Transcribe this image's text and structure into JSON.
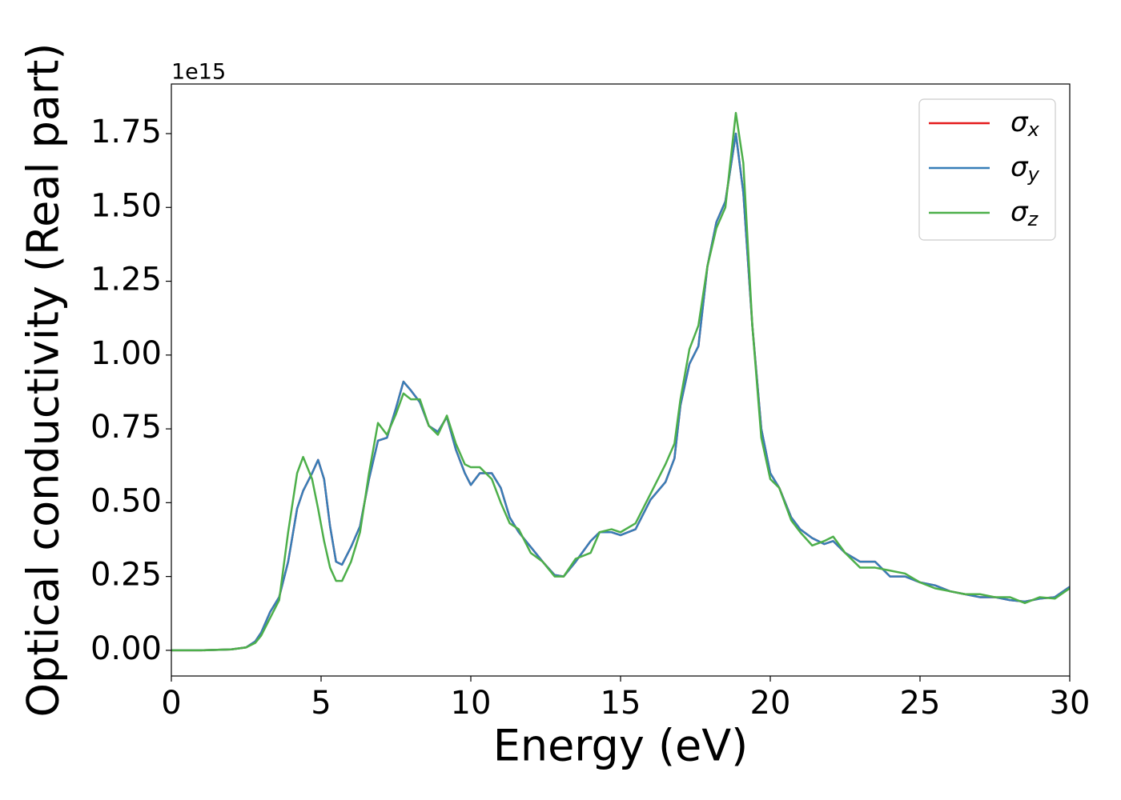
{
  "chart_data": {
    "type": "line",
    "x_label": "Energy (eV)",
    "y_label": "Optical conductivity (Real part)",
    "y_offset_label": "1e15",
    "xlim": [
      0,
      30
    ],
    "xticks": [
      0,
      5,
      10,
      15,
      20,
      25,
      30
    ],
    "ylim": [
      -0.087,
      1.918
    ],
    "yticks": [
      {
        "value": 0,
        "label": "0.00"
      },
      0.25,
      {
        "value": 0.5,
        "label": "0.50"
      },
      0.75,
      {
        "value": 1,
        "label": "1.00"
      },
      1.25,
      {
        "value": 1.5,
        "label": "1.50"
      },
      1.75
    ],
    "grid": false,
    "legend": "upper right",
    "x": [
      0,
      1,
      2,
      2.5,
      2.8,
      3.0,
      3.3,
      3.6,
      3.9,
      4.2,
      4.4,
      4.7,
      4.9,
      5.1,
      5.3,
      5.5,
      5.7,
      6.0,
      6.3,
      6.6,
      6.9,
      7.2,
      7.5,
      7.75,
      8.0,
      8.3,
      8.6,
      8.9,
      9.2,
      9.5,
      9.8,
      10.0,
      10.3,
      10.7,
      11.0,
      11.3,
      11.6,
      12.0,
      12.4,
      12.8,
      13.1,
      13.5,
      14.0,
      14.3,
      14.7,
      15.0,
      15.5,
      16.0,
      16.5,
      16.8,
      17.0,
      17.3,
      17.6,
      17.9,
      18.2,
      18.5,
      18.85,
      19.1,
      19.4,
      19.7,
      20.0,
      20.3,
      20.7,
      21.0,
      21.4,
      21.8,
      22.1,
      22.5,
      23.0,
      23.5,
      24.0,
      24.5,
      25.0,
      25.5,
      26.0,
      26.5,
      27.0,
      27.5,
      28.0,
      28.5,
      29.0,
      29.5,
      30.0
    ],
    "series": [
      {
        "name": "σx",
        "color": "#e41a1c",
        "values": [
          0,
          0,
          0.003,
          0.01,
          0.03,
          0.06,
          0.13,
          0.18,
          0.3,
          0.48,
          0.54,
          0.6,
          0.645,
          0.58,
          0.42,
          0.3,
          0.29,
          0.35,
          0.42,
          0.58,
          0.71,
          0.72,
          0.82,
          0.91,
          0.88,
          0.84,
          0.76,
          0.74,
          0.79,
          0.68,
          0.6,
          0.56,
          0.6,
          0.6,
          0.55,
          0.45,
          0.4,
          0.35,
          0.3,
          0.255,
          0.25,
          0.3,
          0.37,
          0.4,
          0.4,
          0.39,
          0.41,
          0.51,
          0.57,
          0.65,
          0.83,
          0.97,
          1.03,
          1.3,
          1.45,
          1.52,
          1.75,
          1.55,
          1.1,
          0.75,
          0.6,
          0.55,
          0.45,
          0.41,
          0.38,
          0.36,
          0.37,
          0.33,
          0.3,
          0.3,
          0.25,
          0.25,
          0.23,
          0.22,
          0.2,
          0.19,
          0.18,
          0.18,
          0.17,
          0.165,
          0.175,
          0.18,
          0.215
        ]
      },
      {
        "name": "σy",
        "color": "#377eb8",
        "values": [
          0,
          0,
          0.003,
          0.01,
          0.03,
          0.06,
          0.13,
          0.18,
          0.3,
          0.48,
          0.54,
          0.6,
          0.645,
          0.58,
          0.42,
          0.3,
          0.29,
          0.35,
          0.42,
          0.58,
          0.71,
          0.72,
          0.82,
          0.91,
          0.88,
          0.84,
          0.76,
          0.74,
          0.79,
          0.68,
          0.6,
          0.56,
          0.6,
          0.6,
          0.55,
          0.45,
          0.4,
          0.35,
          0.3,
          0.255,
          0.25,
          0.3,
          0.37,
          0.4,
          0.4,
          0.39,
          0.41,
          0.51,
          0.57,
          0.65,
          0.83,
          0.97,
          1.03,
          1.3,
          1.45,
          1.52,
          1.75,
          1.55,
          1.1,
          0.75,
          0.6,
          0.55,
          0.45,
          0.41,
          0.38,
          0.36,
          0.37,
          0.33,
          0.3,
          0.3,
          0.25,
          0.25,
          0.23,
          0.22,
          0.2,
          0.19,
          0.18,
          0.18,
          0.17,
          0.165,
          0.175,
          0.18,
          0.215
        ]
      },
      {
        "name": "σz",
        "color": "#4daf4a",
        "values": [
          0,
          0,
          0.003,
          0.01,
          0.025,
          0.05,
          0.11,
          0.17,
          0.4,
          0.6,
          0.655,
          0.58,
          0.48,
          0.37,
          0.28,
          0.235,
          0.235,
          0.3,
          0.4,
          0.6,
          0.77,
          0.73,
          0.8,
          0.87,
          0.85,
          0.85,
          0.76,
          0.73,
          0.795,
          0.7,
          0.63,
          0.62,
          0.62,
          0.58,
          0.5,
          0.43,
          0.41,
          0.33,
          0.3,
          0.25,
          0.25,
          0.31,
          0.33,
          0.4,
          0.41,
          0.4,
          0.43,
          0.53,
          0.63,
          0.7,
          0.85,
          1.02,
          1.1,
          1.3,
          1.43,
          1.5,
          1.82,
          1.65,
          1.1,
          0.72,
          0.58,
          0.55,
          0.44,
          0.4,
          0.355,
          0.37,
          0.385,
          0.33,
          0.28,
          0.28,
          0.27,
          0.26,
          0.23,
          0.21,
          0.2,
          0.19,
          0.19,
          0.18,
          0.18,
          0.16,
          0.18,
          0.175,
          0.21
        ]
      }
    ]
  }
}
